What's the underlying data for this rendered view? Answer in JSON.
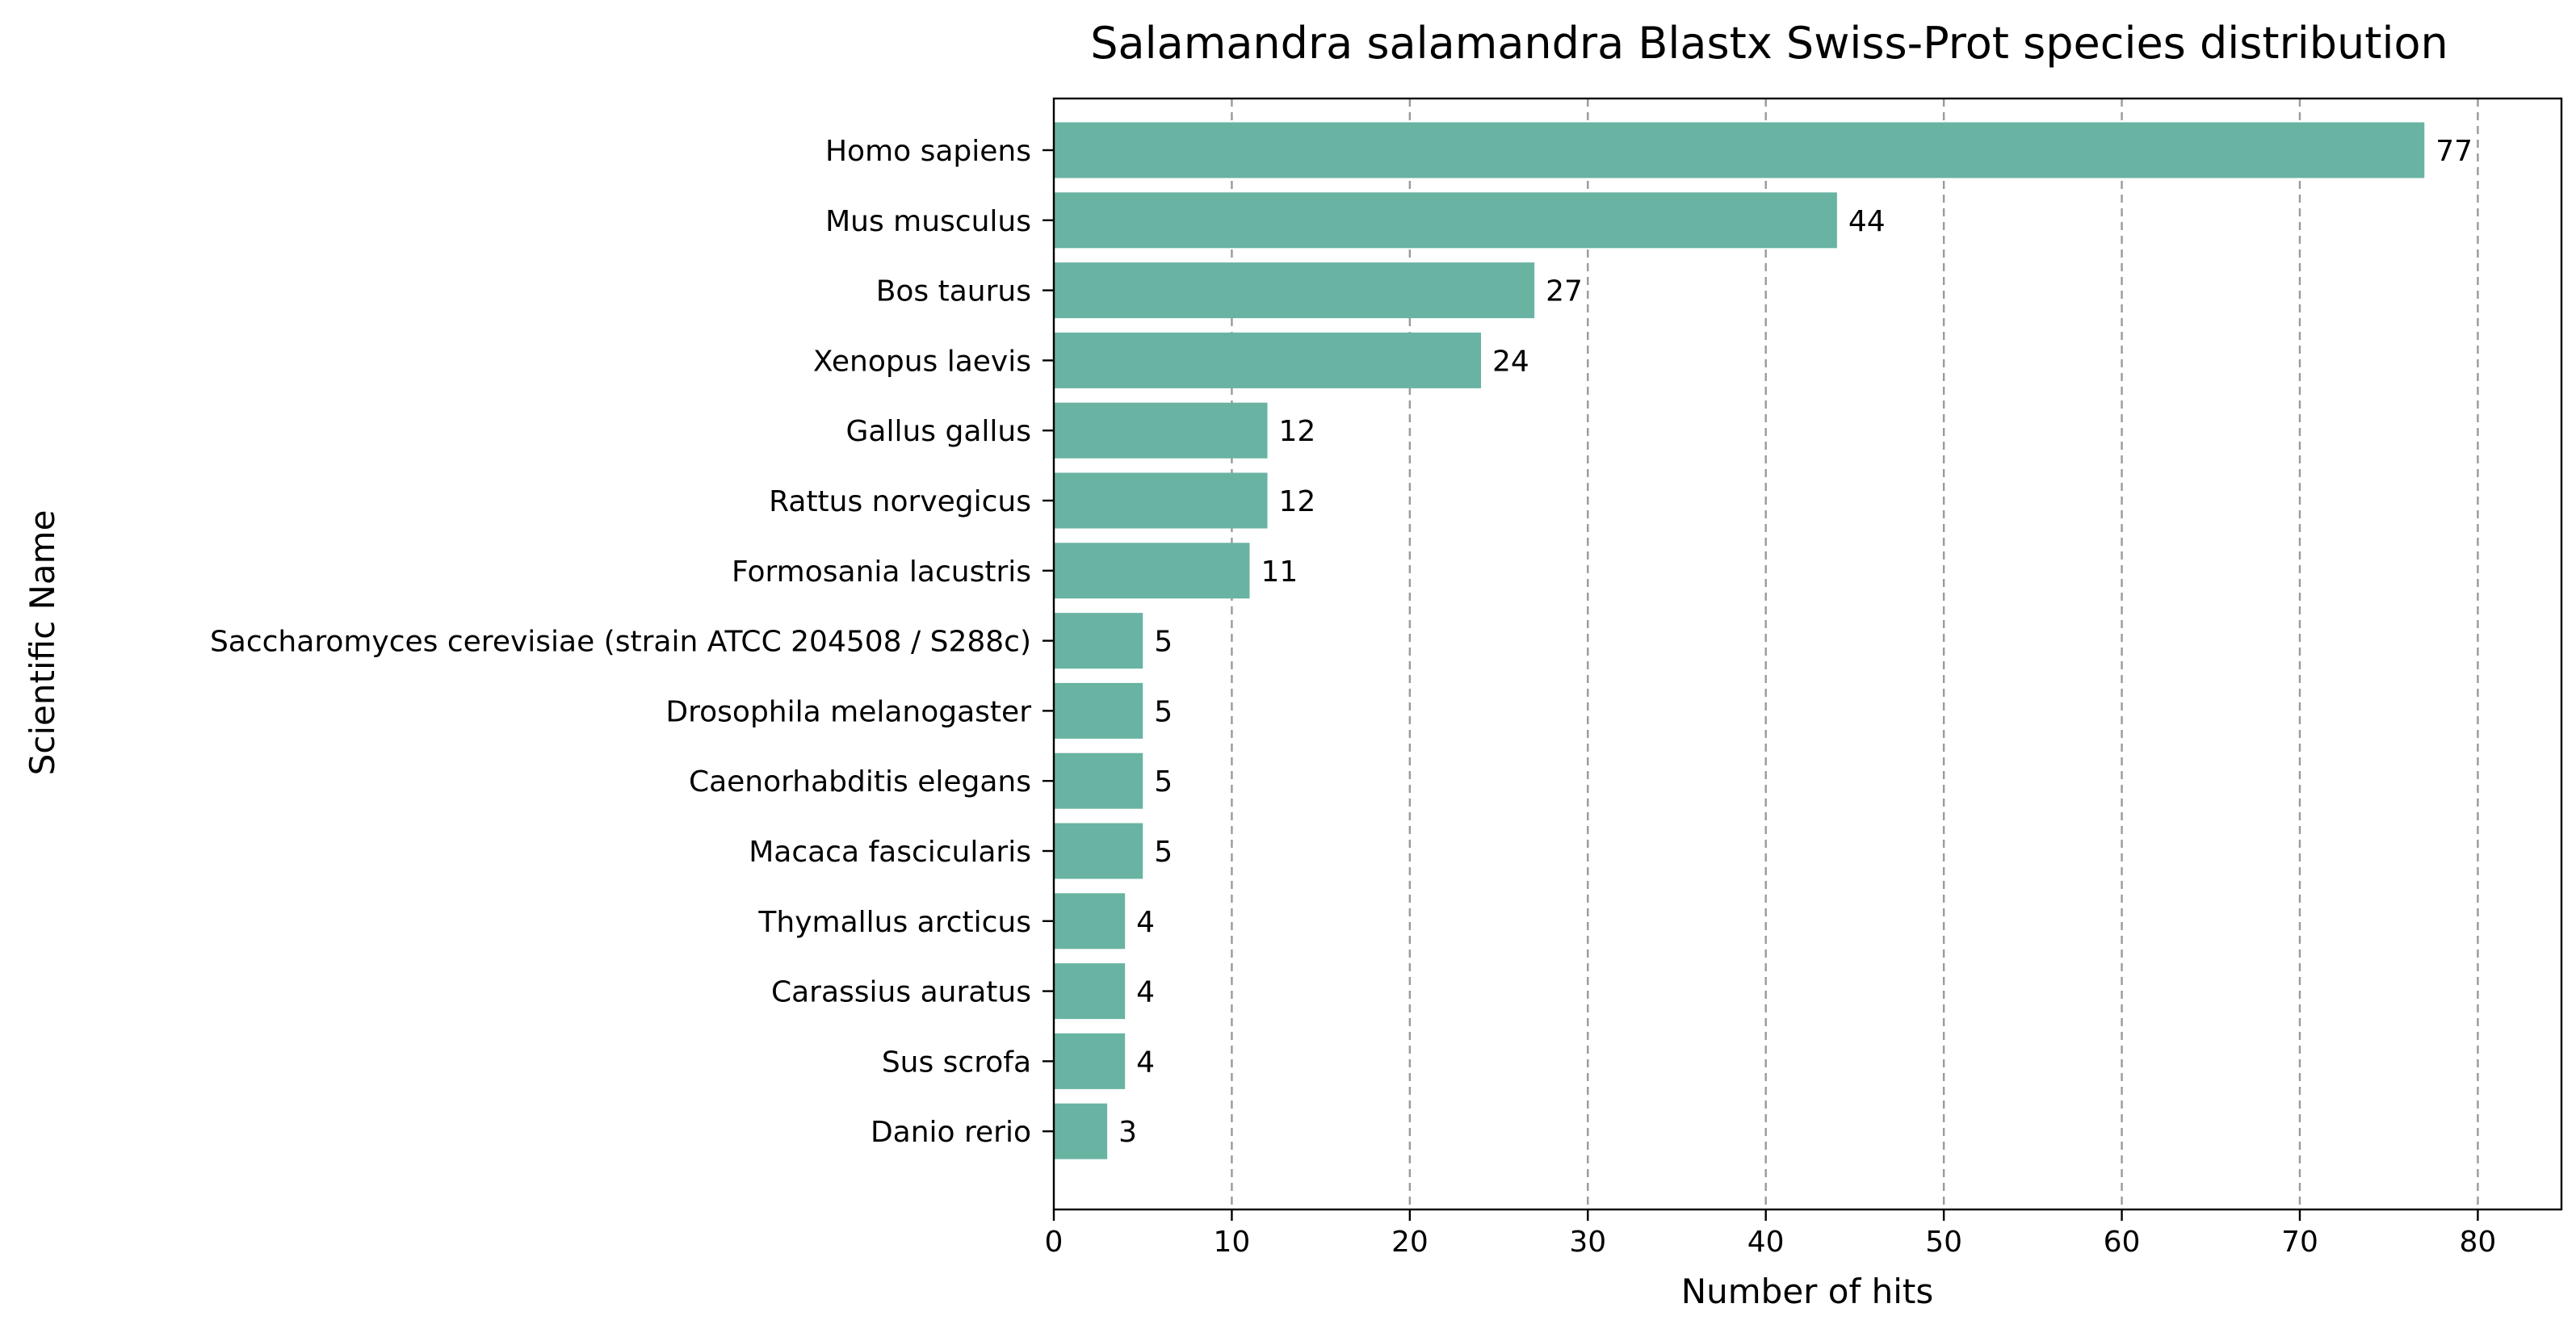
{
  "chart_data": {
    "type": "bar",
    "orientation": "horizontal",
    "title": "Salamandra salamandra Blastx Swiss-Prot species distribution",
    "xlabel": "Number of hits",
    "ylabel": "Scientific Name",
    "categories": [
      "Homo sapiens",
      "Mus musculus",
      "Bos taurus",
      "Xenopus laevis",
      "Gallus gallus",
      "Rattus norvegicus",
      "Formosania lacustris",
      "Saccharomyces cerevisiae (strain ATCC 204508 / S288c)",
      "Drosophila melanogaster",
      "Caenorhabditis elegans",
      "Macaca fascicularis",
      "Thymallus arcticus",
      "Carassius auratus",
      "Sus scrofa",
      "Danio rerio"
    ],
    "values": [
      77,
      44,
      27,
      24,
      12,
      12,
      11,
      5,
      5,
      5,
      5,
      4,
      4,
      4,
      3
    ],
    "xlim": [
      0,
      84.7
    ],
    "xticks": [
      0,
      10,
      20,
      30,
      40,
      50,
      60,
      70,
      80
    ],
    "grid": "x",
    "bar_color": "#69b3a2"
  }
}
